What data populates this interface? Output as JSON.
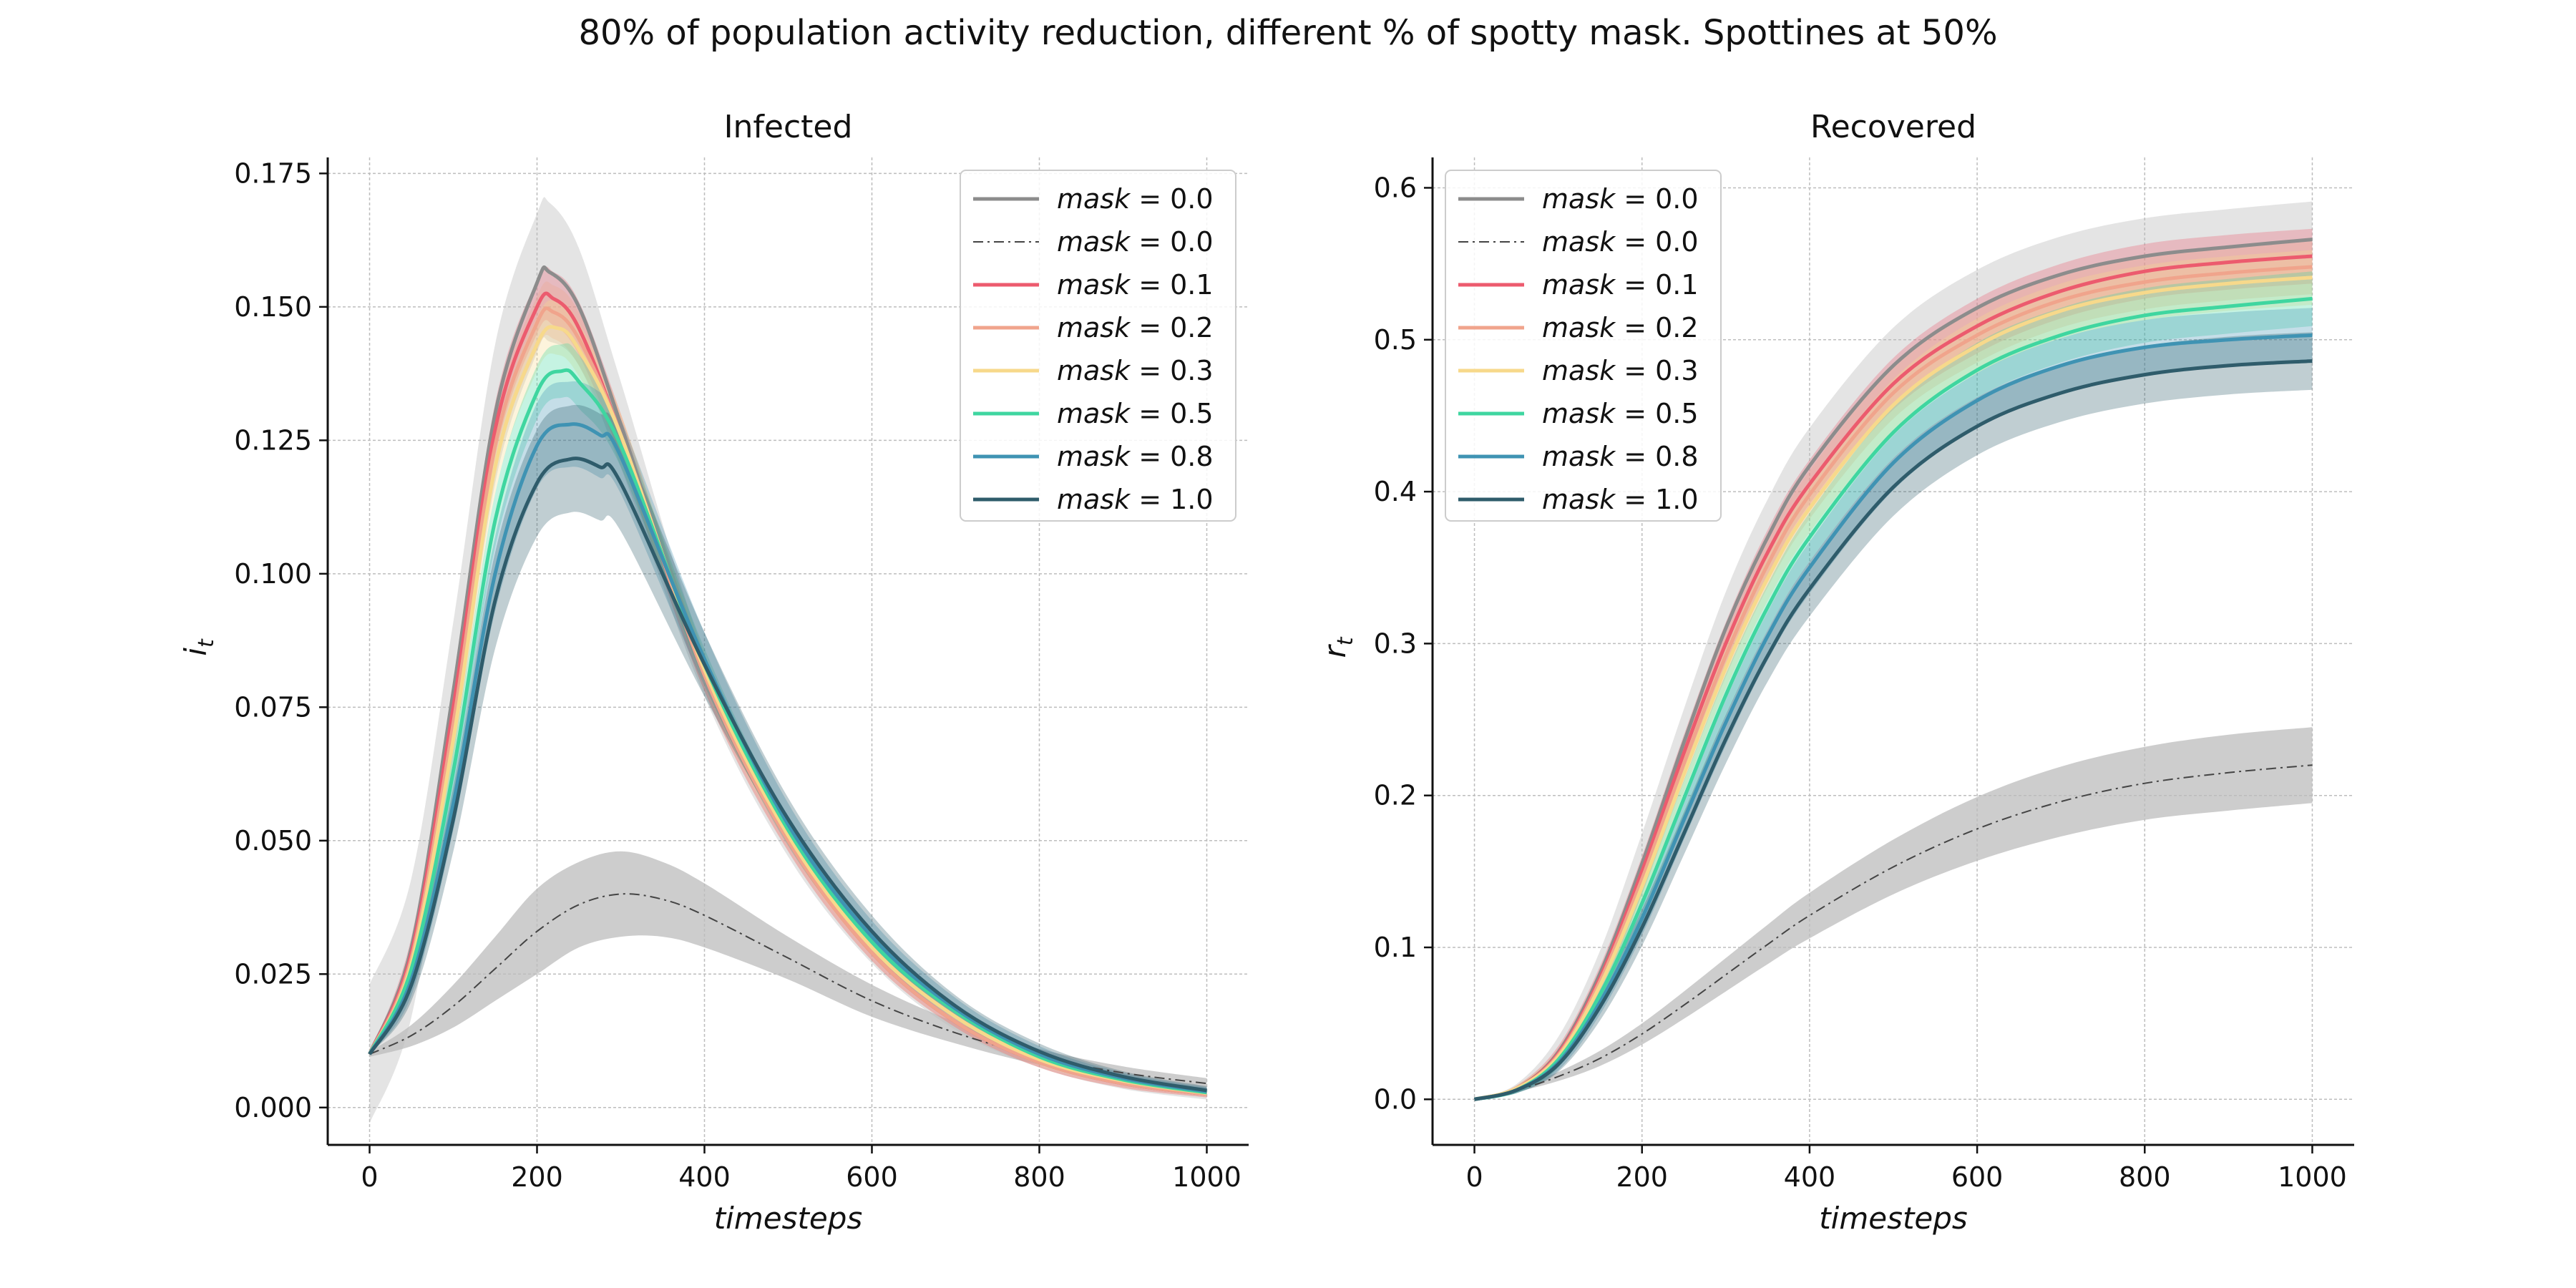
{
  "figure": {
    "suptitle": "80% of population activity reduction, different % of spotty mask. Spottines at 50%"
  },
  "colors": {
    "mask_0_0": "#8c8c8c",
    "baseline": "#444444",
    "mask_0_1": "#ec5b6e",
    "mask_0_2": "#f0a48c",
    "mask_0_3": "#f7d98b",
    "mask_0_5": "#3fd6a0",
    "mask_0_8": "#3f93b3",
    "mask_1_0": "#2f5c6b",
    "grid": "#bdbdbd",
    "band_gray": "#bcbcbc"
  },
  "legend": [
    {
      "key": "mask",
      "eq": " = 0.0",
      "style": "solid",
      "color_key": "mask_0_0"
    },
    {
      "key": "mask",
      "eq": " = 0.0",
      "style": "dashdot",
      "color_key": "baseline"
    },
    {
      "key": "mask",
      "eq": " = 0.1",
      "style": "solid",
      "color_key": "mask_0_1"
    },
    {
      "key": "mask",
      "eq": " = 0.2",
      "style": "solid",
      "color_key": "mask_0_2"
    },
    {
      "key": "mask",
      "eq": " = 0.3",
      "style": "solid",
      "color_key": "mask_0_3"
    },
    {
      "key": "mask",
      "eq": " = 0.5",
      "style": "solid",
      "color_key": "mask_0_5"
    },
    {
      "key": "mask",
      "eq": " = 0.8",
      "style": "solid",
      "color_key": "mask_0_8"
    },
    {
      "key": "mask",
      "eq": " = 1.0",
      "style": "solid",
      "color_key": "mask_1_0"
    }
  ],
  "chart_data": [
    {
      "type": "line",
      "title": "Infected",
      "xlabel": "timesteps",
      "ylabel": "i_t",
      "xlim": [
        -50,
        1050
      ],
      "ylim": [
        -0.007,
        0.178
      ],
      "xticks": [
        0,
        200,
        400,
        600,
        800,
        1000
      ],
      "yticks": [
        0.0,
        0.025,
        0.05,
        0.075,
        0.1,
        0.125,
        0.15,
        0.175
      ],
      "ytick_labels": [
        "0.000",
        "0.025",
        "0.050",
        "0.075",
        "0.100",
        "0.125",
        "0.150",
        "0.175"
      ],
      "grid": true,
      "legend_position": "top-right",
      "series": [
        {
          "name": "mask = 0.0",
          "style": "solid",
          "color_key": "mask_0_0",
          "x": [
            0,
            50,
            100,
            150,
            200,
            215,
            250,
            300,
            400,
            500,
            600,
            700,
            800,
            900,
            1000
          ],
          "y": [
            0.01,
            0.03,
            0.078,
            0.13,
            0.1545,
            0.1565,
            0.15,
            0.128,
            0.081,
            0.05,
            0.029,
            0.016,
            0.0085,
            0.0045,
            0.0025
          ],
          "band": [
            0.013,
            0.013,
            0.013,
            0.013,
            0.013,
            0.013,
            0.011,
            0.008,
            0.004,
            0.003,
            0.002,
            0.0015,
            0.001,
            0.001,
            0.001
          ]
        },
        {
          "name": "mask = 0.0",
          "style": "dashdot",
          "color_key": "baseline",
          "x": [
            0,
            50,
            100,
            150,
            200,
            250,
            300,
            350,
            400,
            500,
            600,
            700,
            800,
            900,
            1000
          ],
          "y": [
            0.01,
            0.0135,
            0.019,
            0.026,
            0.033,
            0.038,
            0.04,
            0.039,
            0.036,
            0.028,
            0.02,
            0.014,
            0.0095,
            0.0065,
            0.0045
          ],
          "band": [
            0.0005,
            0.002,
            0.004,
            0.006,
            0.008,
            0.008,
            0.008,
            0.007,
            0.006,
            0.004,
            0.003,
            0.002,
            0.0015,
            0.0012,
            0.001
          ]
        },
        {
          "name": "mask = 0.1",
          "style": "solid",
          "color_key": "mask_0_1",
          "x": [
            0,
            50,
            100,
            150,
            200,
            220,
            250,
            300,
            400,
            500,
            600,
            700,
            800,
            900,
            1000
          ],
          "y": [
            0.01,
            0.029,
            0.075,
            0.127,
            0.15,
            0.1515,
            0.146,
            0.126,
            0.081,
            0.05,
            0.029,
            0.016,
            0.0085,
            0.0045,
            0.0025
          ],
          "band": [
            0.0,
            0.003,
            0.004,
            0.005,
            0.005,
            0.005,
            0.005,
            0.004,
            0.003,
            0.002,
            0.0015,
            0.001,
            0.001,
            0.0008,
            0.0006
          ]
        },
        {
          "name": "mask = 0.2",
          "style": "solid",
          "color_key": "mask_0_2",
          "x": [
            0,
            50,
            100,
            150,
            200,
            220,
            250,
            300,
            400,
            500,
            600,
            700,
            800,
            900,
            1000
          ],
          "y": [
            0.01,
            0.028,
            0.072,
            0.124,
            0.147,
            0.149,
            0.144,
            0.126,
            0.081,
            0.05,
            0.029,
            0.016,
            0.0085,
            0.0045,
            0.0025
          ],
          "band": [
            0.0,
            0.003,
            0.004,
            0.005,
            0.005,
            0.005,
            0.005,
            0.004,
            0.003,
            0.002,
            0.0015,
            0.001,
            0.001,
            0.0008,
            0.0006
          ]
        },
        {
          "name": "mask = 0.3",
          "style": "solid",
          "color_key": "mask_0_3",
          "x": [
            0,
            50,
            100,
            150,
            200,
            225,
            250,
            300,
            400,
            500,
            600,
            700,
            800,
            900,
            1000
          ],
          "y": [
            0.01,
            0.027,
            0.069,
            0.12,
            0.143,
            0.146,
            0.142,
            0.126,
            0.082,
            0.051,
            0.03,
            0.017,
            0.009,
            0.005,
            0.0027
          ],
          "band": [
            0.0,
            0.003,
            0.004,
            0.005,
            0.005,
            0.005,
            0.005,
            0.004,
            0.003,
            0.002,
            0.0015,
            0.001,
            0.001,
            0.0008,
            0.0006
          ]
        },
        {
          "name": "mask = 0.5",
          "style": "solid",
          "color_key": "mask_0_5",
          "x": [
            0,
            50,
            100,
            150,
            200,
            230,
            250,
            300,
            400,
            500,
            600,
            700,
            800,
            900,
            1000
          ],
          "y": [
            0.01,
            0.026,
            0.063,
            0.11,
            0.134,
            0.138,
            0.136,
            0.124,
            0.083,
            0.052,
            0.031,
            0.018,
            0.0095,
            0.0052,
            0.0028
          ],
          "band": [
            0.0,
            0.003,
            0.004,
            0.005,
            0.005,
            0.005,
            0.005,
            0.004,
            0.003,
            0.002,
            0.0015,
            0.001,
            0.001,
            0.0008,
            0.0006
          ]
        },
        {
          "name": "mask = 0.8",
          "style": "solid",
          "color_key": "mask_0_8",
          "x": [
            0,
            50,
            100,
            150,
            200,
            240,
            275,
            300,
            400,
            500,
            600,
            700,
            800,
            900,
            1000
          ],
          "y": [
            0.01,
            0.024,
            0.057,
            0.1,
            0.124,
            0.128,
            0.126,
            0.122,
            0.084,
            0.053,
            0.032,
            0.0185,
            0.01,
            0.0055,
            0.003
          ],
          "band": [
            0.0,
            0.003,
            0.005,
            0.007,
            0.008,
            0.008,
            0.008,
            0.007,
            0.005,
            0.004,
            0.003,
            0.002,
            0.0015,
            0.001,
            0.0008
          ]
        },
        {
          "name": "mask = 1.0",
          "style": "solid",
          "color_key": "mask_1_0",
          "x": [
            0,
            50,
            100,
            150,
            200,
            240,
            275,
            300,
            400,
            500,
            600,
            700,
            800,
            900,
            1000
          ],
          "y": [
            0.01,
            0.023,
            0.054,
            0.095,
            0.117,
            0.1215,
            0.12,
            0.117,
            0.083,
            0.054,
            0.033,
            0.019,
            0.0105,
            0.0058,
            0.0032
          ],
          "band": [
            0.0,
            0.003,
            0.006,
            0.009,
            0.01,
            0.01,
            0.01,
            0.009,
            0.006,
            0.004,
            0.003,
            0.002,
            0.0015,
            0.001,
            0.0008
          ]
        }
      ]
    },
    {
      "type": "line",
      "title": "Recovered",
      "xlabel": "timesteps",
      "ylabel": "r_t",
      "xlim": [
        -50,
        1050
      ],
      "ylim": [
        -0.03,
        0.62
      ],
      "xticks": [
        0,
        200,
        400,
        600,
        800,
        1000
      ],
      "yticks": [
        0.0,
        0.1,
        0.2,
        0.3,
        0.4,
        0.5,
        0.6
      ],
      "ytick_labels": [
        "0.0",
        "0.1",
        "0.2",
        "0.3",
        "0.4",
        "0.5",
        "0.6"
      ],
      "grid": true,
      "legend_position": "top-left",
      "series": [
        {
          "name": "mask = 0.0",
          "style": "solid",
          "color_key": "mask_0_0",
          "x": [
            0,
            50,
            100,
            150,
            200,
            250,
            300,
            350,
            400,
            500,
            600,
            700,
            800,
            900,
            1000
          ],
          "y": [
            0.0,
            0.007,
            0.031,
            0.083,
            0.155,
            0.235,
            0.31,
            0.37,
            0.417,
            0.483,
            0.521,
            0.543,
            0.555,
            0.561,
            0.566
          ],
          "band": [
            0.0,
            0.003,
            0.01,
            0.015,
            0.02,
            0.022,
            0.024,
            0.025,
            0.025,
            0.025,
            0.025,
            0.025,
            0.025,
            0.025,
            0.025
          ]
        },
        {
          "name": "mask = 0.0",
          "style": "dashdot",
          "color_key": "baseline",
          "x": [
            0,
            50,
            100,
            150,
            200,
            250,
            300,
            350,
            400,
            500,
            600,
            700,
            800,
            900,
            1000
          ],
          "y": [
            0.0,
            0.006,
            0.015,
            0.027,
            0.043,
            0.062,
            0.082,
            0.102,
            0.121,
            0.153,
            0.178,
            0.196,
            0.208,
            0.215,
            0.22
          ],
          "band": [
            0.0,
            0.001,
            0.003,
            0.005,
            0.007,
            0.009,
            0.011,
            0.013,
            0.015,
            0.018,
            0.021,
            0.023,
            0.024,
            0.025,
            0.025
          ]
        },
        {
          "name": "mask = 0.1",
          "style": "solid",
          "color_key": "mask_0_1",
          "x": [
            0,
            50,
            100,
            150,
            200,
            250,
            300,
            350,
            400,
            500,
            600,
            700,
            800,
            900,
            1000
          ],
          "y": [
            0.0,
            0.007,
            0.03,
            0.08,
            0.15,
            0.228,
            0.3,
            0.36,
            0.405,
            0.471,
            0.509,
            0.532,
            0.545,
            0.551,
            0.555
          ],
          "band": [
            0.0,
            0.002,
            0.005,
            0.008,
            0.01,
            0.012,
            0.014,
            0.015,
            0.016,
            0.017,
            0.018,
            0.018,
            0.018,
            0.018,
            0.018
          ]
        },
        {
          "name": "mask = 0.2",
          "style": "solid",
          "color_key": "mask_0_2",
          "x": [
            0,
            50,
            100,
            150,
            200,
            250,
            300,
            350,
            400,
            500,
            600,
            700,
            800,
            900,
            1000
          ],
          "y": [
            0.0,
            0.007,
            0.029,
            0.078,
            0.145,
            0.221,
            0.292,
            0.352,
            0.398,
            0.465,
            0.503,
            0.526,
            0.538,
            0.544,
            0.548
          ],
          "band": [
            0.0,
            0.002,
            0.005,
            0.008,
            0.01,
            0.012,
            0.014,
            0.015,
            0.016,
            0.017,
            0.018,
            0.018,
            0.018,
            0.018,
            0.018
          ]
        },
        {
          "name": "mask = 0.3",
          "style": "solid",
          "color_key": "mask_0_3",
          "x": [
            0,
            50,
            100,
            150,
            200,
            250,
            300,
            350,
            400,
            500,
            600,
            700,
            800,
            900,
            1000
          ],
          "y": [
            0.0,
            0.007,
            0.028,
            0.075,
            0.14,
            0.214,
            0.284,
            0.343,
            0.389,
            0.457,
            0.496,
            0.519,
            0.531,
            0.537,
            0.541
          ],
          "band": [
            0.0,
            0.002,
            0.005,
            0.008,
            0.01,
            0.012,
            0.014,
            0.015,
            0.016,
            0.017,
            0.018,
            0.018,
            0.018,
            0.018,
            0.018
          ]
        },
        {
          "name": "mask = 0.5",
          "style": "solid",
          "color_key": "mask_0_5",
          "x": [
            0,
            50,
            100,
            150,
            200,
            250,
            300,
            350,
            400,
            500,
            600,
            700,
            800,
            900,
            1000
          ],
          "y": [
            0.0,
            0.006,
            0.026,
            0.069,
            0.129,
            0.198,
            0.266,
            0.324,
            0.37,
            0.439,
            0.48,
            0.503,
            0.516,
            0.522,
            0.527
          ],
          "band": [
            0.0,
            0.002,
            0.005,
            0.008,
            0.01,
            0.012,
            0.014,
            0.015,
            0.016,
            0.017,
            0.018,
            0.018,
            0.018,
            0.018,
            0.018
          ]
        },
        {
          "name": "mask = 0.8",
          "style": "solid",
          "color_key": "mask_0_8",
          "x": [
            0,
            50,
            100,
            150,
            200,
            250,
            300,
            350,
            400,
            500,
            600,
            700,
            800,
            900,
            1000
          ],
          "y": [
            0.0,
            0.006,
            0.024,
            0.064,
            0.119,
            0.184,
            0.248,
            0.305,
            0.35,
            0.419,
            0.46,
            0.483,
            0.495,
            0.5,
            0.503
          ],
          "band": [
            0.0,
            0.002,
            0.005,
            0.008,
            0.011,
            0.013,
            0.015,
            0.016,
            0.017,
            0.018,
            0.018,
            0.018,
            0.018,
            0.018,
            0.018
          ]
        },
        {
          "name": "mask = 1.0",
          "style": "solid",
          "color_key": "mask_1_0",
          "x": [
            0,
            50,
            100,
            150,
            200,
            250,
            300,
            350,
            400,
            500,
            600,
            700,
            800,
            900,
            1000
          ],
          "y": [
            0.0,
            0.006,
            0.023,
            0.061,
            0.113,
            0.175,
            0.237,
            0.292,
            0.336,
            0.403,
            0.443,
            0.465,
            0.477,
            0.483,
            0.486
          ],
          "band": [
            0.0,
            0.002,
            0.005,
            0.009,
            0.012,
            0.014,
            0.016,
            0.017,
            0.018,
            0.019,
            0.019,
            0.019,
            0.019,
            0.019,
            0.019
          ]
        }
      ]
    }
  ]
}
